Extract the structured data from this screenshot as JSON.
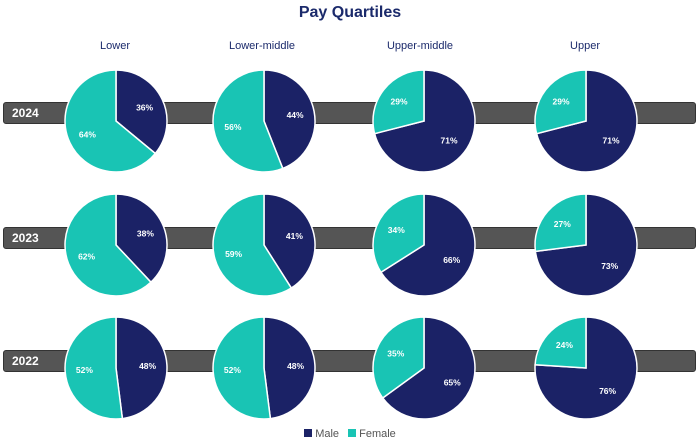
{
  "chart_data": {
    "type": "pie",
    "title": "Pay Quartiles",
    "quartiles": [
      "Lower",
      "Lower-middle",
      "Upper-middle",
      "Upper"
    ],
    "years": [
      "2024",
      "2023",
      "2022"
    ],
    "series": [
      {
        "name": "Male",
        "color": "#1b2266"
      },
      {
        "name": "Female",
        "color": "#19c4b4"
      }
    ],
    "pies": [
      {
        "year": "2024",
        "quartile": "Lower",
        "male": 36,
        "female": 64
      },
      {
        "year": "2024",
        "quartile": "Lower-middle",
        "male": 44,
        "female": 56
      },
      {
        "year": "2024",
        "quartile": "Upper-middle",
        "male": 71,
        "female": 29
      },
      {
        "year": "2024",
        "quartile": "Upper",
        "male": 71,
        "female": 29
      },
      {
        "year": "2023",
        "quartile": "Lower",
        "male": 38,
        "female": 62
      },
      {
        "year": "2023",
        "quartile": "Lower-middle",
        "male": 41,
        "female": 59
      },
      {
        "year": "2023",
        "quartile": "Upper-middle",
        "male": 66,
        "female": 34
      },
      {
        "year": "2023",
        "quartile": "Upper",
        "male": 73,
        "female": 27
      },
      {
        "year": "2022",
        "quartile": "Lower",
        "male": 48,
        "female": 52
      },
      {
        "year": "2022",
        "quartile": "Lower-middle",
        "male": 48,
        "female": 52
      },
      {
        "year": "2022",
        "quartile": "Upper-middle",
        "male": 65,
        "female": 35
      },
      {
        "year": "2022",
        "quartile": "Upper",
        "male": 76,
        "female": 24
      }
    ],
    "legend_position": "bottom"
  }
}
